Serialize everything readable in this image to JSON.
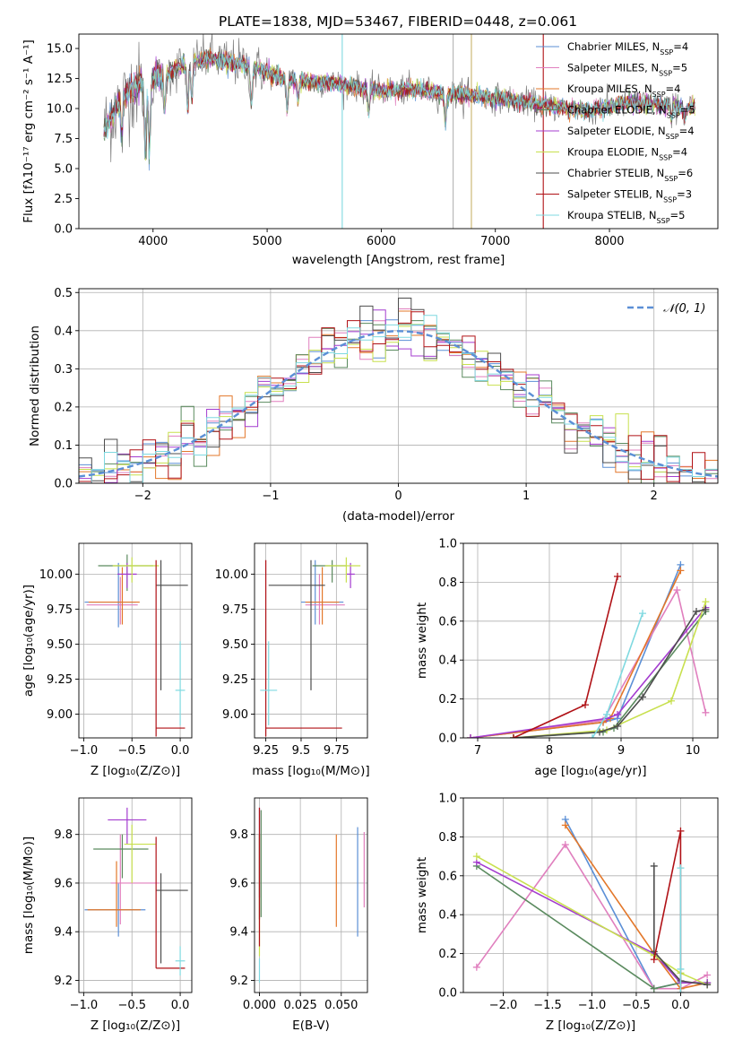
{
  "colors": [
    "#5b8fd6",
    "#e07fbe",
    "#e3772a",
    "#5a8a5e",
    "#a43ccf",
    "#c8e04e",
    "#4d4d4d",
    "#b01116",
    "#7fd9e0"
  ],
  "chart_data": [
    {
      "type": "line",
      "title": "PLATE=1838, MJD=53467, FIBERID=0448, z=0.061",
      "xlabel": "wavelength [Angstrom, rest frame]",
      "ylabel": "Flux [fλ10⁻¹⁷ erg cm⁻² s⁻¹ A⁻¹]",
      "xlim": [
        3350,
        8950
      ],
      "ylim": [
        0,
        16.2
      ],
      "xticks": [
        4000,
        5000,
        6000,
        7000,
        8000
      ],
      "yticks": [
        0.0,
        2.5,
        5.0,
        7.5,
        10.0,
        12.5,
        15.0
      ],
      "legend_position": "top-right",
      "legend": [
        "Chabrier MILES, N_SSP=4",
        "Salpeter MILES, N_SSP=5",
        "Kroupa MILES, N_SSP=4",
        "Chabrier ELODIE, N_SSP=5",
        "Salpeter ELODIE, N_SSP=4",
        "Kroupa ELODIE, N_SSP=4",
        "Chabrier STELIB, N_SSP=6",
        "Salpeter STELIB, N_SSP=3",
        "Kroupa STELIB, N_SSP=5"
      ],
      "continuum": [
        [
          3550,
          7.8
        ],
        [
          3700,
          10.5
        ],
        [
          3800,
          11.6
        ],
        [
          3950,
          12.2
        ],
        [
          4100,
          12.8
        ],
        [
          4300,
          13.8
        ],
        [
          4500,
          14.2
        ],
        [
          4800,
          13.6
        ],
        [
          5000,
          13.0
        ],
        [
          5200,
          12.3
        ],
        [
          5500,
          12.2
        ],
        [
          5800,
          11.8
        ],
        [
          6000,
          11.5
        ],
        [
          6300,
          11.6
        ],
        [
          6500,
          11.3
        ],
        [
          6800,
          11.1
        ],
        [
          7000,
          10.9
        ],
        [
          7200,
          10.6
        ],
        [
          7500,
          10.2
        ],
        [
          7800,
          9.8
        ],
        [
          8200,
          10.5
        ],
        [
          8500,
          10.3
        ],
        [
          8700,
          10.1
        ]
      ]
    },
    {
      "type": "line",
      "xlabel": "(data-model)/error",
      "ylabel": "Normed distribution",
      "xlim": [
        -2.5,
        2.5
      ],
      "ylim": [
        0,
        0.51
      ],
      "xticks": [
        -2,
        -1,
        0,
        1,
        2
      ],
      "yticks": [
        0.0,
        0.1,
        0.2,
        0.3,
        0.4,
        0.5
      ],
      "legend_position": "top-right",
      "legend_label": "𝒩(0, 1)",
      "normal_mean": 0,
      "normal_std": 1
    },
    {
      "type": "scatter",
      "xlabel": "Z [log₁₀(Z/Z⊙)]",
      "ylabel": "age  [log₁₀(age/yr)]",
      "xlim": [
        -1.05,
        0.12
      ],
      "ylim": [
        8.83,
        10.22
      ],
      "xticks": [
        -1.0,
        -0.5,
        0.0
      ],
      "yticks": [
        9.0,
        9.25,
        9.5,
        9.75,
        10.0
      ],
      "points": [
        {
          "x": -0.64,
          "xerr": [
            0.35,
            0.18
          ],
          "y": 9.8,
          "yerr": [
            0.18,
            0.28
          ]
        },
        {
          "x": -0.62,
          "xerr": [
            0.35,
            0.18
          ],
          "y": 9.78,
          "yerr": [
            0.14,
            0.2
          ]
        },
        {
          "x": -0.6,
          "xerr": [
            0.35,
            0.18
          ],
          "y": 9.8,
          "yerr": [
            0.16,
            0.25
          ]
        },
        {
          "x": -0.55,
          "xerr": [
            0.3,
            0.27
          ],
          "y": 10.06,
          "yerr": [
            0.18,
            0.08
          ]
        },
        {
          "x": -0.55,
          "xerr": [
            0.1,
            0.1
          ],
          "y": 10.0,
          "yerr": [
            0.1,
            0.08
          ]
        },
        {
          "x": -0.5,
          "xerr": [
            0.2,
            0.28
          ],
          "y": 10.06,
          "yerr": [
            0.12,
            0.06
          ]
        },
        {
          "x": -0.2,
          "xerr": [
            0.05,
            0.28
          ],
          "y": 9.92,
          "yerr": [
            0.75,
            0.18
          ]
        },
        {
          "x": -0.25,
          "xerr": [
            0.0,
            0.3
          ],
          "y": 8.9,
          "yerr": [
            0.06,
            1.2
          ]
        },
        {
          "x": 0.0,
          "xerr": [
            0.05,
            0.05
          ],
          "y": 9.17,
          "yerr": [
            0.25,
            0.35
          ]
        }
      ]
    },
    {
      "type": "scatter",
      "xlabel": "mass [log₁₀(M/M⊙)]",
      "xlim": [
        9.17,
        9.97
      ],
      "ylim": [
        8.83,
        10.22
      ],
      "xticks": [
        9.25,
        9.5,
        9.75
      ],
      "yticks": [
        9.0,
        9.25,
        9.5,
        9.75,
        10.0
      ],
      "points": [
        {
          "x": 9.6,
          "xerr": [
            0.1,
            0.2
          ],
          "y": 9.8,
          "yerr": [
            0.16,
            0.3
          ]
        },
        {
          "x": 9.63,
          "xerr": [
            0.1,
            0.18
          ],
          "y": 9.78,
          "yerr": [
            0.14,
            0.22
          ]
        },
        {
          "x": 9.65,
          "xerr": [
            0.12,
            0.12
          ],
          "y": 9.8,
          "yerr": [
            0.16,
            0.25
          ]
        },
        {
          "x": 9.72,
          "xerr": [
            0.14,
            0.1
          ],
          "y": 10.06,
          "yerr": [
            0.12,
            0.04
          ]
        },
        {
          "x": 9.85,
          "xerr": [
            0.03,
            0.03
          ],
          "y": 10.0,
          "yerr": [
            0.1,
            0.08
          ]
        },
        {
          "x": 9.82,
          "xerr": [
            0.15,
            0.1
          ],
          "y": 10.06,
          "yerr": [
            0.12,
            0.06
          ]
        },
        {
          "x": 9.57,
          "xerr": [
            0.3,
            0.1
          ],
          "y": 9.92,
          "yerr": [
            0.75,
            0.18
          ]
        },
        {
          "x": 9.25,
          "xerr": [
            0.0,
            0.54
          ],
          "y": 8.9,
          "yerr": [
            0.06,
            1.2
          ]
        },
        {
          "x": 9.27,
          "xerr": [
            0.06,
            0.06
          ],
          "y": 9.17,
          "yerr": [
            0.25,
            0.35
          ]
        }
      ]
    },
    {
      "type": "line",
      "xlabel": "age  [log₁₀(age/yr)]",
      "ylabel": "mass weight",
      "xlim": [
        6.8,
        10.35
      ],
      "ylim": [
        0,
        1.0
      ],
      "xticks": [
        7,
        8,
        9,
        10
      ],
      "yticks": [
        0.0,
        0.2,
        0.4,
        0.6,
        0.8,
        1.0
      ],
      "series": [
        {
          "x": [
            6.9,
            8.75,
            8.95,
            9.83
          ],
          "y": [
            0.0,
            0.08,
            0.1,
            0.89
          ]
        },
        {
          "x": [
            6.9,
            8.75,
            9.78,
            10.18
          ],
          "y": [
            0.0,
            0.09,
            0.76,
            0.13
          ]
        },
        {
          "x": [
            6.9,
            8.75,
            8.85,
            9.83
          ],
          "y": [
            0.0,
            0.08,
            0.1,
            0.86
          ]
        },
        {
          "x": [
            7.5,
            8.75,
            8.9,
            10.18
          ],
          "y": [
            0.0,
            0.03,
            0.05,
            0.65
          ]
        },
        {
          "x": [
            6.9,
            8.8,
            8.95,
            10.18
          ],
          "y": [
            0.0,
            0.1,
            0.12,
            0.67
          ]
        },
        {
          "x": [
            7.5,
            8.8,
            9.7,
            10.18
          ],
          "y": [
            0.0,
            0.04,
            0.19,
            0.7
          ]
        },
        {
          "x": [
            7.5,
            8.7,
            8.95,
            9.3,
            10.05,
            10.18
          ],
          "y": [
            0.0,
            0.03,
            0.06,
            0.21,
            0.65,
            0.66
          ]
        },
        {
          "x": [
            7.5,
            8.5,
            8.95
          ],
          "y": [
            0.0,
            0.17,
            0.83
          ]
        },
        {
          "x": [
            8.6,
            8.8,
            9.3
          ],
          "y": [
            0.0,
            0.12,
            0.64
          ]
        }
      ]
    },
    {
      "type": "scatter",
      "xlabel": "Z [log₁₀(Z/Z⊙)]",
      "ylabel": "mass [log₁₀(M/M⊙)]",
      "xlim": [
        -1.05,
        0.12
      ],
      "ylim": [
        9.15,
        9.95
      ],
      "xticks": [
        -1.0,
        -0.5,
        0.0
      ],
      "yticks": [
        9.2,
        9.4,
        9.6,
        9.8
      ],
      "points": [
        {
          "x": -0.64,
          "xerr": [
            0.35,
            0.28
          ],
          "y": 9.49,
          "yerr": [
            0.11,
            0.11
          ]
        },
        {
          "x": -0.62,
          "xerr": [
            0.1,
            0.4
          ],
          "y": 9.6,
          "yerr": [
            0.17,
            0.2
          ]
        },
        {
          "x": -0.66,
          "xerr": [
            0.3,
            0.25
          ],
          "y": 9.49,
          "yerr": [
            0.07,
            0.2
          ]
        },
        {
          "x": -0.6,
          "xerr": [
            0.3,
            0.27
          ],
          "y": 9.74,
          "yerr": [
            0.12,
            0.06
          ]
        },
        {
          "x": -0.55,
          "xerr": [
            0.2,
            0.2
          ],
          "y": 9.86,
          "yerr": [
            0.1,
            0.05
          ]
        },
        {
          "x": -0.5,
          "xerr": [
            0.08,
            0.25
          ],
          "y": 9.76,
          "yerr": [
            0.16,
            0.08
          ]
        },
        {
          "x": -0.2,
          "xerr": [
            0.05,
            0.28
          ],
          "y": 9.57,
          "yerr": [
            0.3,
            0.07
          ]
        },
        {
          "x": -0.25,
          "xerr": [
            0.0,
            0.3
          ],
          "y": 9.25,
          "yerr": [
            0.0,
            0.54
          ]
        },
        {
          "x": 0.0,
          "xerr": [
            0.05,
            0.05
          ],
          "y": 9.28,
          "yerr": [
            0.06,
            0.06
          ]
        }
      ]
    },
    {
      "type": "scatter",
      "xlabel": "E(B-V)",
      "xlim": [
        -0.003,
        0.066
      ],
      "ylim": [
        9.15,
        9.95
      ],
      "xticks": [
        0.0,
        0.025,
        0.05
      ],
      "yticks": [
        9.2,
        9.4,
        9.6,
        9.8
      ],
      "points": [
        {
          "x": 0.06,
          "y": 9.6,
          "yerr": [
            0.22,
            0.23
          ]
        },
        {
          "x": 0.064,
          "y": 9.66,
          "yerr": [
            0.16,
            0.15
          ]
        },
        {
          "x": 0.047,
          "y": 9.61,
          "yerr": [
            0.19,
            0.19
          ]
        },
        {
          "x": 0.001,
          "y": 9.66,
          "yerr": [
            0.2,
            0.24
          ]
        },
        {
          "x": 0.0,
          "y": 9.64,
          "yerr": [
            0.1,
            0.27
          ]
        },
        {
          "x": 0.0,
          "y": 9.6,
          "yerr": [
            0.3,
            0.2
          ]
        },
        {
          "x": 0.0,
          "y": 9.6,
          "yerr": [
            0.15,
            0.2
          ]
        },
        {
          "x": 0.0,
          "y": 9.55,
          "yerr": [
            0.21,
            0.36
          ]
        },
        {
          "x": 0.0,
          "y": 9.24,
          "yerr": [
            0.05,
            0.05
          ]
        }
      ]
    },
    {
      "type": "line",
      "xlabel": "Z [log₁₀(Z/Z⊙)]",
      "ylabel": "mass weight",
      "xlim": [
        -2.45,
        0.42
      ],
      "ylim": [
        0,
        1.0
      ],
      "xticks": [
        -2.0,
        -1.5,
        -1.0,
        -0.5,
        0.0
      ],
      "yticks": [
        0.0,
        0.2,
        0.4,
        0.6,
        0.8,
        1.0
      ],
      "series": [
        {
          "x": [
            -1.3,
            -0.3,
            0.0,
            0.3
          ],
          "y": [
            0.89,
            0.02,
            0.05,
            0.05
          ]
        },
        {
          "x": [
            -2.3,
            -1.3,
            -0.3,
            0.0,
            0.3
          ],
          "y": [
            0.13,
            0.76,
            0.02,
            0.02,
            0.09
          ]
        },
        {
          "x": [
            -1.3,
            -0.3,
            0.0,
            0.3
          ],
          "y": [
            0.86,
            0.2,
            0.02,
            0.05
          ]
        },
        {
          "x": [
            -2.3,
            -0.3,
            0.0,
            0.3
          ],
          "y": [
            0.65,
            0.02,
            0.05,
            0.05
          ]
        },
        {
          "x": [
            -2.3,
            -0.3,
            0.0,
            0.3
          ],
          "y": [
            0.67,
            0.2,
            0.05,
            0.05
          ]
        },
        {
          "x": [
            -2.3,
            -0.3,
            0.0,
            0.3
          ],
          "y": [
            0.7,
            0.19,
            0.1,
            0.04
          ]
        },
        {
          "x": [
            -0.3,
            -0.3,
            0.0,
            0.3
          ],
          "y": [
            0.65,
            0.21,
            0.06,
            0.04
          ]
        },
        {
          "x": [
            -0.3,
            0.0,
            0.0
          ],
          "y": [
            0.17,
            0.83,
            0.0
          ]
        },
        {
          "x": [
            0.0,
            0.0,
            0.0
          ],
          "y": [
            0.64,
            0.12,
            0.0
          ]
        }
      ]
    }
  ]
}
